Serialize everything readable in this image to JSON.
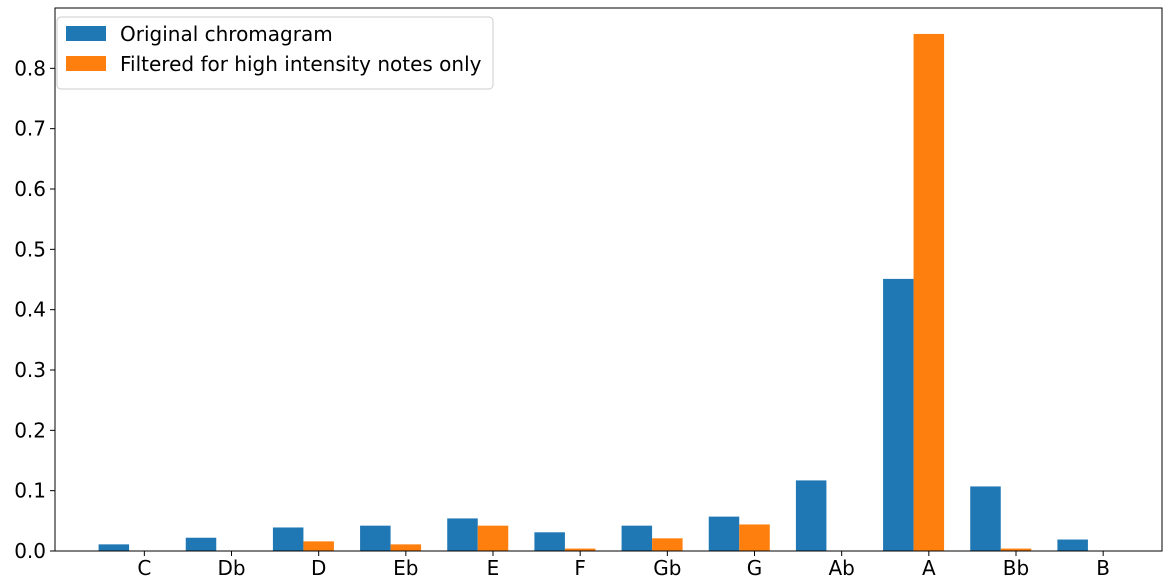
{
  "chart_data": {
    "type": "bar",
    "title": "",
    "xlabel": "",
    "ylabel": "",
    "categories": [
      "C",
      "Db",
      "D",
      "Eb",
      "E",
      "F",
      "Gb",
      "G",
      "Ab",
      "A",
      "Bb",
      "B"
    ],
    "series": [
      {
        "name": "Original chromagram",
        "color": "#1f77b4",
        "values": [
          0.011,
          0.022,
          0.039,
          0.042,
          0.054,
          0.031,
          0.042,
          0.057,
          0.117,
          0.451,
          0.107,
          0.019
        ]
      },
      {
        "name": "Filtered for high intensity notes only",
        "color": "#ff7f0e",
        "values": [
          0.0,
          0.0,
          0.016,
          0.011,
          0.042,
          0.004,
          0.021,
          0.044,
          0.0,
          0.857,
          0.004,
          0.0
        ]
      }
    ],
    "ylim": [
      0,
      0.9
    ],
    "yticks": [
      "0.0",
      "0.1",
      "0.2",
      "0.3",
      "0.4",
      "0.5",
      "0.6",
      "0.7",
      "0.8"
    ],
    "grid": false,
    "legend_position": "top-left"
  }
}
